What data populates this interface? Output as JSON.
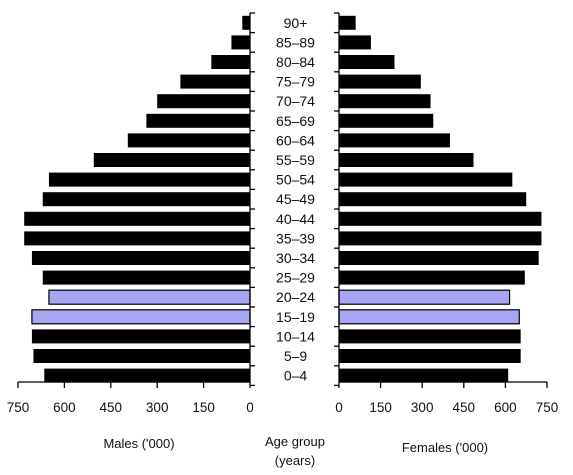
{
  "chart_data": {
    "type": "bar",
    "subtype": "population-pyramid",
    "title": "",
    "categories": [
      "90+",
      "85–89",
      "80–84",
      "75–79",
      "70–74",
      "65–69",
      "60–64",
      "55–59",
      "50–54",
      "45–49",
      "40–44",
      "35–39",
      "30–34",
      "25–29",
      "20–24",
      "15–19",
      "10–14",
      "5–9",
      "0–4"
    ],
    "series": [
      {
        "name": "Males ('000)",
        "side": "left",
        "values": [
          25,
          60,
          125,
          225,
          300,
          335,
          395,
          505,
          650,
          670,
          730,
          730,
          705,
          670,
          650,
          705,
          705,
          700,
          665
        ]
      },
      {
        "name": "Females ('000)",
        "side": "right",
        "values": [
          60,
          115,
          200,
          295,
          330,
          340,
          400,
          485,
          625,
          675,
          730,
          730,
          720,
          670,
          615,
          650,
          655,
          655,
          610
        ]
      }
    ],
    "highlight_categories": [
      "20–24",
      "15–19"
    ],
    "colors": {
      "bar": "#000000",
      "highlight": "#a6a6f2",
      "highlight_stroke": "#000000"
    },
    "left_axis": {
      "label": "Males ('000)",
      "lim": [
        750,
        0
      ],
      "ticks": [
        "750",
        "600",
        "450",
        "300",
        "150",
        "0"
      ]
    },
    "right_axis": {
      "label": "Females ('000)",
      "lim": [
        0,
        750
      ],
      "ticks": [
        "0",
        "150",
        "300",
        "450",
        "600",
        "750"
      ]
    },
    "center_label": [
      "Age group",
      "(years)"
    ],
    "grid": false,
    "legend": "none"
  }
}
